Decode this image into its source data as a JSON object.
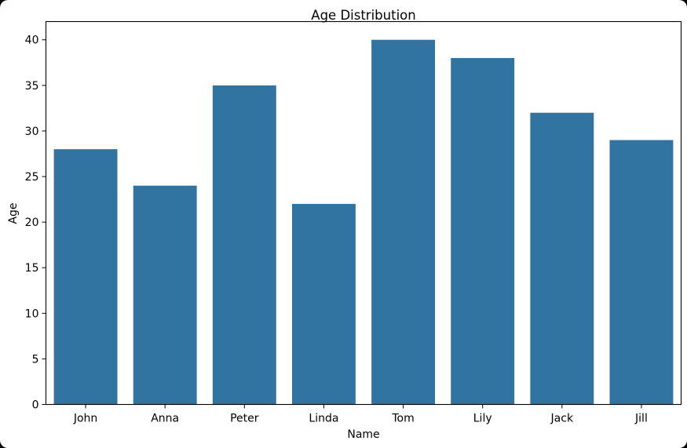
{
  "chart_data": {
    "type": "bar",
    "title": "Age Distribution",
    "xlabel": "Name",
    "ylabel": "Age",
    "categories": [
      "John",
      "Anna",
      "Peter",
      "Linda",
      "Tom",
      "Lily",
      "Jack",
      "Jill"
    ],
    "values": [
      28,
      24,
      35,
      22,
      40,
      38,
      32,
      29
    ],
    "ylim": [
      0,
      42
    ],
    "yticks": [
      0,
      5,
      10,
      15,
      20,
      25,
      30,
      35,
      40
    ],
    "bar_color": "#3274a1",
    "grid": false,
    "legend": "none"
  }
}
